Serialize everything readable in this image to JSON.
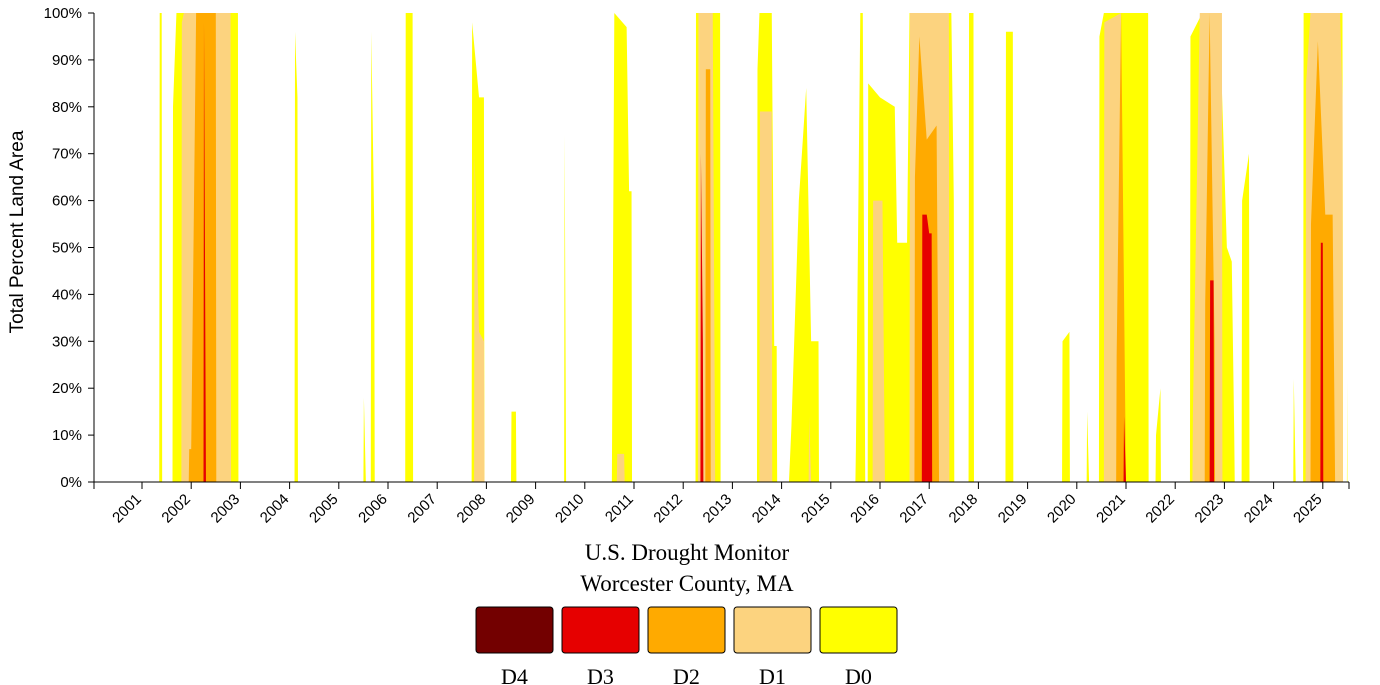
{
  "chart_data": {
    "type": "area",
    "title": "U.S. Drought Monitor",
    "subtitle": "Worcester County, MA",
    "xlabel": "",
    "ylabel": "Total Percent Land Area",
    "ylim": [
      0,
      100
    ],
    "xlim": [
      2000.0,
      2025.5
    ],
    "y_ticks": [
      "0%",
      "10%",
      "20%",
      "30%",
      "40%",
      "50%",
      "60%",
      "70%",
      "80%",
      "90%",
      "100%"
    ],
    "x_ticks": [
      "2001",
      "2002",
      "2003",
      "2004",
      "2005",
      "2006",
      "2007",
      "2008",
      "2009",
      "2010",
      "2011",
      "2012",
      "2013",
      "2014",
      "2015",
      "2016",
      "2017",
      "2018",
      "2019",
      "2020",
      "2021",
      "2022",
      "2023",
      "2024",
      "2025"
    ],
    "grid": false,
    "legend_position": "bottom",
    "series": [
      {
        "name": "D0",
        "color": "#ffff00",
        "points": [
          [
            2001.35,
            0
          ],
          [
            2001.36,
            100
          ],
          [
            2001.4,
            100
          ],
          [
            2001.41,
            0
          ],
          [
            2001.62,
            0
          ],
          [
            2001.63,
            80
          ],
          [
            2001.7,
            100
          ],
          [
            2002.95,
            100
          ],
          [
            2002.96,
            0
          ],
          [
            2004.1,
            0
          ],
          [
            2004.11,
            96
          ],
          [
            2004.16,
            82
          ],
          [
            2004.17,
            0
          ],
          [
            2005.5,
            0
          ],
          [
            2005.51,
            18
          ],
          [
            2005.55,
            0
          ],
          [
            2005.65,
            0
          ],
          [
            2005.66,
            96
          ],
          [
            2005.72,
            55
          ],
          [
            2005.73,
            0
          ],
          [
            2006.35,
            0
          ],
          [
            2006.36,
            100
          ],
          [
            2006.5,
            100
          ],
          [
            2006.51,
            0
          ],
          [
            2007.7,
            0
          ],
          [
            2007.71,
            98
          ],
          [
            2007.85,
            82
          ],
          [
            2007.95,
            82
          ],
          [
            2007.96,
            0
          ],
          [
            2008.5,
            0
          ],
          [
            2008.51,
            15
          ],
          [
            2008.6,
            15
          ],
          [
            2008.61,
            0
          ],
          [
            2009.58,
            0
          ],
          [
            2009.59,
            74
          ],
          [
            2009.62,
            0
          ],
          [
            2010.55,
            0
          ],
          [
            2010.6,
            100
          ],
          [
            2010.85,
            97
          ],
          [
            2010.9,
            62
          ],
          [
            2010.95,
            62
          ],
          [
            2010.96,
            0
          ],
          [
            2012.25,
            0
          ],
          [
            2012.26,
            100
          ],
          [
            2012.6,
            100
          ],
          [
            2012.75,
            100
          ],
          [
            2012.76,
            0
          ],
          [
            2013.5,
            0
          ],
          [
            2013.51,
            88
          ],
          [
            2013.55,
            100
          ],
          [
            2013.8,
            100
          ],
          [
            2013.85,
            29
          ],
          [
            2013.9,
            29
          ],
          [
            2013.91,
            0
          ],
          [
            2014.15,
            0
          ],
          [
            2014.2,
            12
          ],
          [
            2014.35,
            60
          ],
          [
            2014.5,
            84
          ],
          [
            2014.6,
            30
          ],
          [
            2014.75,
            30
          ],
          [
            2014.76,
            0
          ],
          [
            2015.5,
            0
          ],
          [
            2015.51,
            7
          ],
          [
            2015.6,
            100
          ],
          [
            2015.65,
            100
          ],
          [
            2015.7,
            0
          ],
          [
            2015.75,
            0
          ],
          [
            2015.76,
            85
          ],
          [
            2016.0,
            82
          ],
          [
            2016.3,
            80
          ],
          [
            2016.35,
            51
          ],
          [
            2016.55,
            51
          ],
          [
            2016.6,
            100
          ],
          [
            2017.45,
            100
          ],
          [
            2017.5,
            60
          ],
          [
            2017.51,
            0
          ],
          [
            2017.8,
            0
          ],
          [
            2017.81,
            100
          ],
          [
            2017.9,
            100
          ],
          [
            2017.91,
            0
          ],
          [
            2018.55,
            0
          ],
          [
            2018.56,
            96
          ],
          [
            2018.7,
            96
          ],
          [
            2018.71,
            0
          ],
          [
            2019.7,
            0
          ],
          [
            2019.71,
            30
          ],
          [
            2019.85,
            32
          ],
          [
            2019.86,
            0
          ],
          [
            2020.2,
            0
          ],
          [
            2020.21,
            15
          ],
          [
            2020.25,
            0
          ],
          [
            2020.45,
            0
          ],
          [
            2020.46,
            95
          ],
          [
            2020.55,
            100
          ],
          [
            2021.45,
            100
          ],
          [
            2021.46,
            0
          ],
          [
            2021.6,
            0
          ],
          [
            2021.61,
            10
          ],
          [
            2021.7,
            20
          ],
          [
            2021.71,
            0
          ],
          [
            2022.3,
            0
          ],
          [
            2022.31,
            95
          ],
          [
            2022.55,
            100
          ],
          [
            2022.9,
            100
          ],
          [
            2023.05,
            50
          ],
          [
            2023.15,
            47
          ],
          [
            2023.2,
            10
          ],
          [
            2023.21,
            0
          ],
          [
            2023.35,
            0
          ],
          [
            2023.36,
            60
          ],
          [
            2023.5,
            70
          ],
          [
            2023.51,
            0
          ],
          [
            2024.4,
            0
          ],
          [
            2024.41,
            22
          ],
          [
            2024.45,
            0
          ],
          [
            2024.6,
            0
          ],
          [
            2024.61,
            100
          ],
          [
            2025.4,
            100
          ],
          [
            2025.41,
            0
          ],
          [
            2025.49,
            0
          ],
          [
            2025.5,
            22
          ]
        ]
      },
      {
        "name": "D1",
        "color": "#fcd37f",
        "points": [
          [
            2001.8,
            0
          ],
          [
            2001.81,
            98
          ],
          [
            2001.85,
            100
          ],
          [
            2002.8,
            100
          ],
          [
            2002.81,
            0
          ],
          [
            2007.75,
            0
          ],
          [
            2007.76,
            70
          ],
          [
            2007.85,
            32
          ],
          [
            2007.95,
            30
          ],
          [
            2007.96,
            0
          ],
          [
            2010.65,
            0
          ],
          [
            2010.66,
            6
          ],
          [
            2010.8,
            6
          ],
          [
            2010.81,
            0
          ],
          [
            2012.3,
            0
          ],
          [
            2012.31,
            100
          ],
          [
            2012.6,
            100
          ],
          [
            2012.65,
            0
          ],
          [
            2013.55,
            0
          ],
          [
            2013.56,
            79
          ],
          [
            2013.8,
            79
          ],
          [
            2013.81,
            0
          ],
          [
            2014.55,
            0
          ],
          [
            2014.56,
            14
          ],
          [
            2014.6,
            0
          ],
          [
            2015.85,
            0
          ],
          [
            2015.86,
            60
          ],
          [
            2016.05,
            60
          ],
          [
            2016.1,
            0
          ],
          [
            2016.6,
            0
          ],
          [
            2016.61,
            100
          ],
          [
            2017.4,
            100
          ],
          [
            2017.41,
            0
          ],
          [
            2020.55,
            0
          ],
          [
            2020.56,
            98
          ],
          [
            2020.9,
            100
          ],
          [
            2020.91,
            0
          ],
          [
            2022.35,
            0
          ],
          [
            2022.36,
            15
          ],
          [
            2022.5,
            100
          ],
          [
            2022.95,
            100
          ],
          [
            2022.96,
            0
          ],
          [
            2024.65,
            0
          ],
          [
            2024.66,
            85
          ],
          [
            2024.75,
            100
          ],
          [
            2025.35,
            100
          ],
          [
            2025.4,
            82
          ],
          [
            2025.41,
            0
          ]
        ]
      },
      {
        "name": "D2",
        "color": "#ffaa00",
        "points": [
          [
            2001.95,
            0
          ],
          [
            2001.96,
            7
          ],
          [
            2002.0,
            7
          ],
          [
            2002.1,
            100
          ],
          [
            2002.5,
            100
          ],
          [
            2002.51,
            0
          ],
          [
            2012.45,
            0
          ],
          [
            2012.46,
            88
          ],
          [
            2012.55,
            88
          ],
          [
            2012.56,
            0
          ],
          [
            2016.7,
            0
          ],
          [
            2016.71,
            65
          ],
          [
            2016.8,
            95
          ],
          [
            2016.95,
            73
          ],
          [
            2017.15,
            76
          ],
          [
            2017.2,
            0
          ],
          [
            2020.8,
            0
          ],
          [
            2020.81,
            27
          ],
          [
            2020.9,
            100
          ],
          [
            2021.0,
            0
          ],
          [
            2022.6,
            0
          ],
          [
            2022.61,
            38
          ],
          [
            2022.7,
            100
          ],
          [
            2022.8,
            30
          ],
          [
            2022.81,
            0
          ],
          [
            2024.75,
            0
          ],
          [
            2024.76,
            55
          ],
          [
            2024.9,
            94
          ],
          [
            2025.05,
            57
          ],
          [
            2025.2,
            57
          ],
          [
            2025.25,
            0
          ]
        ]
      },
      {
        "name": "D3",
        "color": "#e60000",
        "points": [
          [
            2002.25,
            0
          ],
          [
            2002.26,
            98
          ],
          [
            2002.3,
            0
          ],
          [
            2012.35,
            0
          ],
          [
            2012.36,
            70
          ],
          [
            2012.4,
            30
          ],
          [
            2012.41,
            0
          ],
          [
            2016.85,
            0
          ],
          [
            2016.86,
            57
          ],
          [
            2016.95,
            57
          ],
          [
            2017.0,
            53
          ],
          [
            2017.05,
            53
          ],
          [
            2017.06,
            0
          ],
          [
            2020.95,
            0
          ],
          [
            2020.96,
            14
          ],
          [
            2021.0,
            0
          ],
          [
            2022.7,
            0
          ],
          [
            2022.71,
            43
          ],
          [
            2022.78,
            43
          ],
          [
            2022.79,
            0
          ],
          [
            2024.95,
            0
          ],
          [
            2024.96,
            51
          ],
          [
            2025.0,
            51
          ],
          [
            2025.01,
            0
          ]
        ]
      },
      {
        "name": "D4",
        "color": "#730000",
        "points": []
      }
    ],
    "legend": [
      {
        "label": "D4",
        "color": "#730000"
      },
      {
        "label": "D3",
        "color": "#e60000"
      },
      {
        "label": "D2",
        "color": "#ffaa00"
      },
      {
        "label": "D1",
        "color": "#fcd37f"
      },
      {
        "label": "D0",
        "color": "#ffff00"
      }
    ]
  }
}
